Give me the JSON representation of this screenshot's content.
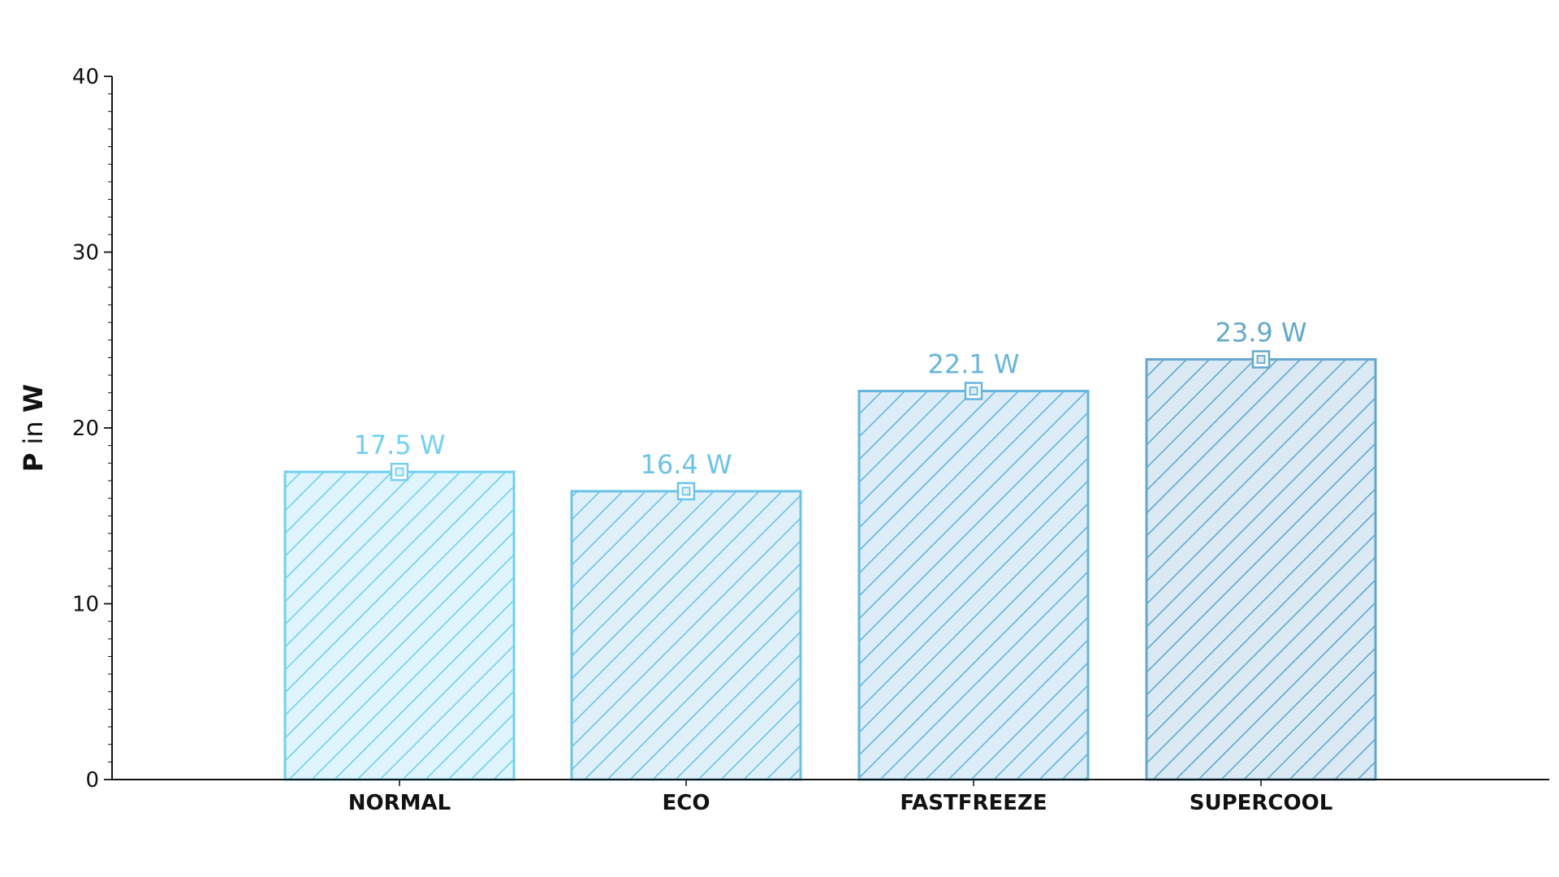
{
  "chart_data": {
    "type": "bar",
    "categories": [
      "NORMAL",
      "ECO",
      "FASTFREEZE",
      "SUPERCOOL"
    ],
    "values": [
      17.5,
      16.4,
      22.1,
      23.9
    ],
    "value_labels": [
      "17.5 W",
      "16.4 W",
      "22.1 W",
      "23.9 W"
    ],
    "title": "",
    "xlabel": "",
    "ylabel": {
      "symbol": "P",
      "middle": "in",
      "unit": "W"
    },
    "ylim": [
      0,
      40
    ],
    "yticks": [
      "0",
      "10",
      "20",
      "30",
      "40"
    ],
    "grid": false,
    "legend": "none",
    "bar_colors": {
      "fill": [
        "#dff4fc",
        "#dff0f9",
        "#dcedf8",
        "#dbe9f4"
      ],
      "stroke": [
        "#72d0f0",
        "#6cc3e8",
        "#67b5dc",
        "#63a8cc"
      ],
      "hatch": [
        "#72d0f0",
        "#6cc3e8",
        "#67b5dc",
        "#63a8cc"
      ]
    },
    "axis_color": "#111111"
  }
}
